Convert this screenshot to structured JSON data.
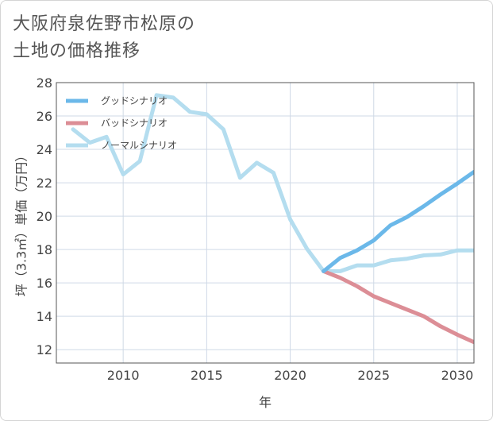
{
  "header": {
    "title_line1": "大阪府泉佐野市松原の",
    "title_line2": "土地の価格推移"
  },
  "chart_data": {
    "type": "line",
    "title": "大阪府泉佐野市松原の土地の価格推移",
    "xlabel": "年",
    "ylabel": "坪（3.3㎡）単価（万円）",
    "xlim": [
      2006,
      2031
    ],
    "ylim": [
      11.2,
      28
    ],
    "xticks": [
      2010,
      2015,
      2020,
      2025,
      2030
    ],
    "yticks": [
      12,
      14,
      16,
      18,
      20,
      22,
      24,
      26,
      28
    ],
    "grid": true,
    "legend_position": "top-left",
    "series": [
      {
        "name": "グッドシナリオ",
        "color": "#6bb8e9",
        "x": [
          2022,
          2023,
          2024,
          2025,
          2026,
          2027,
          2028,
          2029,
          2030,
          2031
        ],
        "y": [
          16.7,
          17.5,
          17.95,
          18.55,
          19.45,
          19.95,
          20.6,
          21.3,
          21.95,
          22.65
        ]
      },
      {
        "name": "バッドシナリオ",
        "color": "#dc8e96",
        "x": [
          2022,
          2023,
          2024,
          2025,
          2026,
          2027,
          2028,
          2029,
          2030,
          2031
        ],
        "y": [
          16.7,
          16.3,
          15.8,
          15.2,
          14.8,
          14.4,
          14.0,
          13.4,
          12.9,
          12.45
        ]
      },
      {
        "name": "ノーマルシナリオ",
        "color": "#b4ddef",
        "x": [
          2007,
          2008,
          2009,
          2010,
          2011,
          2012,
          2013,
          2014,
          2015,
          2016,
          2017,
          2018,
          2019,
          2020,
          2021,
          2022,
          2023,
          2024,
          2025,
          2026,
          2027,
          2028,
          2029,
          2030,
          2031
        ],
        "y": [
          25.2,
          24.4,
          24.75,
          22.5,
          23.3,
          27.25,
          27.1,
          26.25,
          26.1,
          25.2,
          22.3,
          23.2,
          22.6,
          19.8,
          18.05,
          16.7,
          16.7,
          17.05,
          17.05,
          17.35,
          17.45,
          17.65,
          17.7,
          17.95,
          17.95
        ]
      }
    ]
  }
}
